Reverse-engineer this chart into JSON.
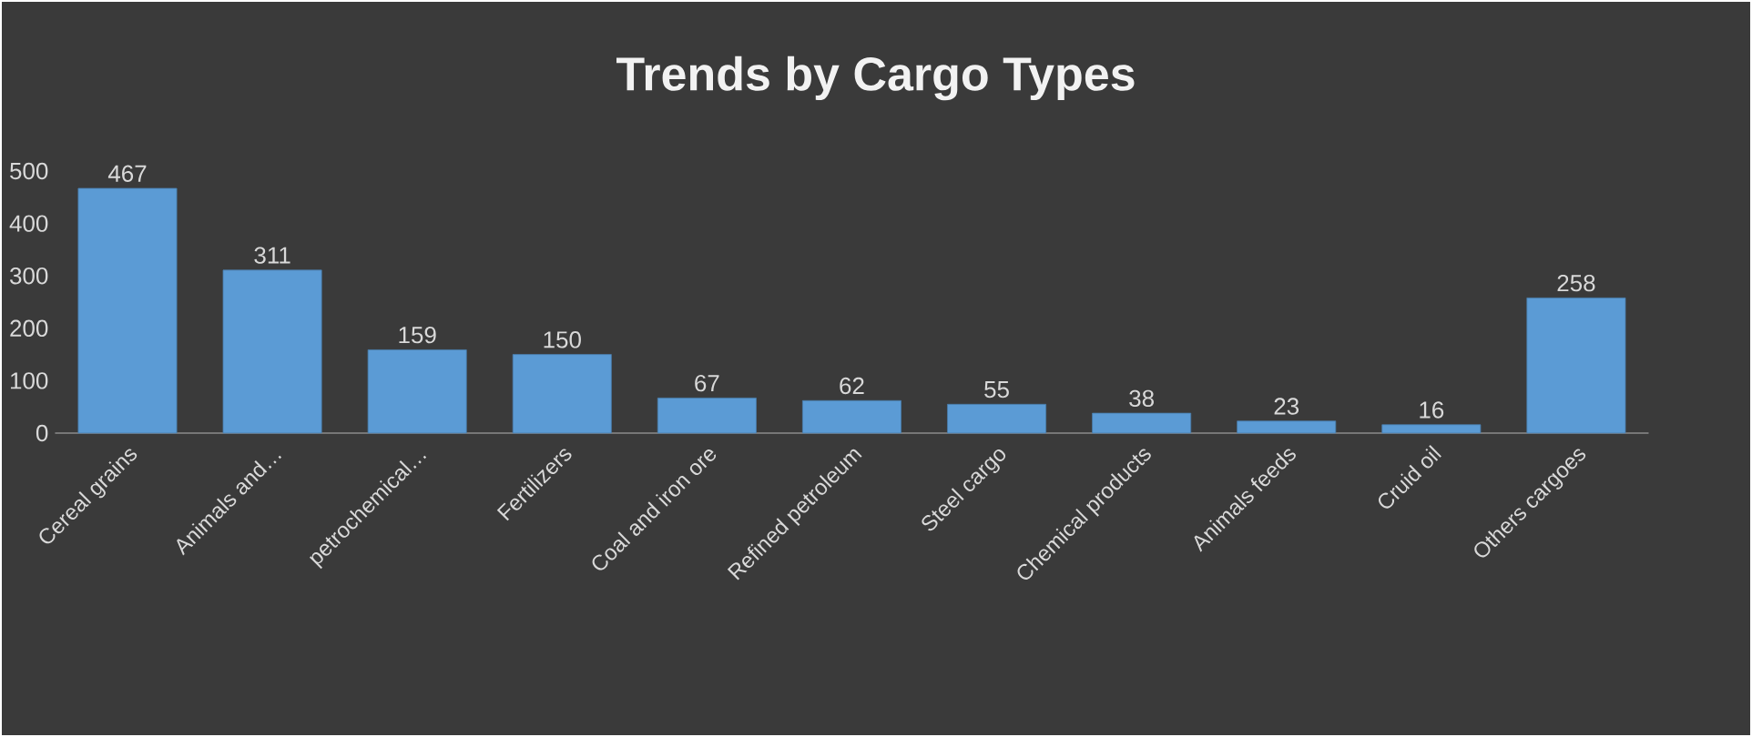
{
  "chart_data": {
    "type": "bar",
    "title": "Trends by Cargo Types",
    "categories": [
      "Cereal grains",
      "Animals and…",
      "petrochemical…",
      "Fertilizers",
      "Coal and iron ore",
      "Refined petroleum",
      "Steel cargo",
      "Chemical products",
      "Animals feeds",
      "Cruid oil",
      "Others cargoes"
    ],
    "values": [
      467,
      311,
      159,
      150,
      67,
      62,
      55,
      38,
      23,
      16,
      258
    ],
    "color": "#5b9bd5",
    "ylim": [
      0,
      500
    ],
    "yticks": [
      0,
      100,
      200,
      300,
      400,
      500
    ],
    "data_labels": true
  }
}
